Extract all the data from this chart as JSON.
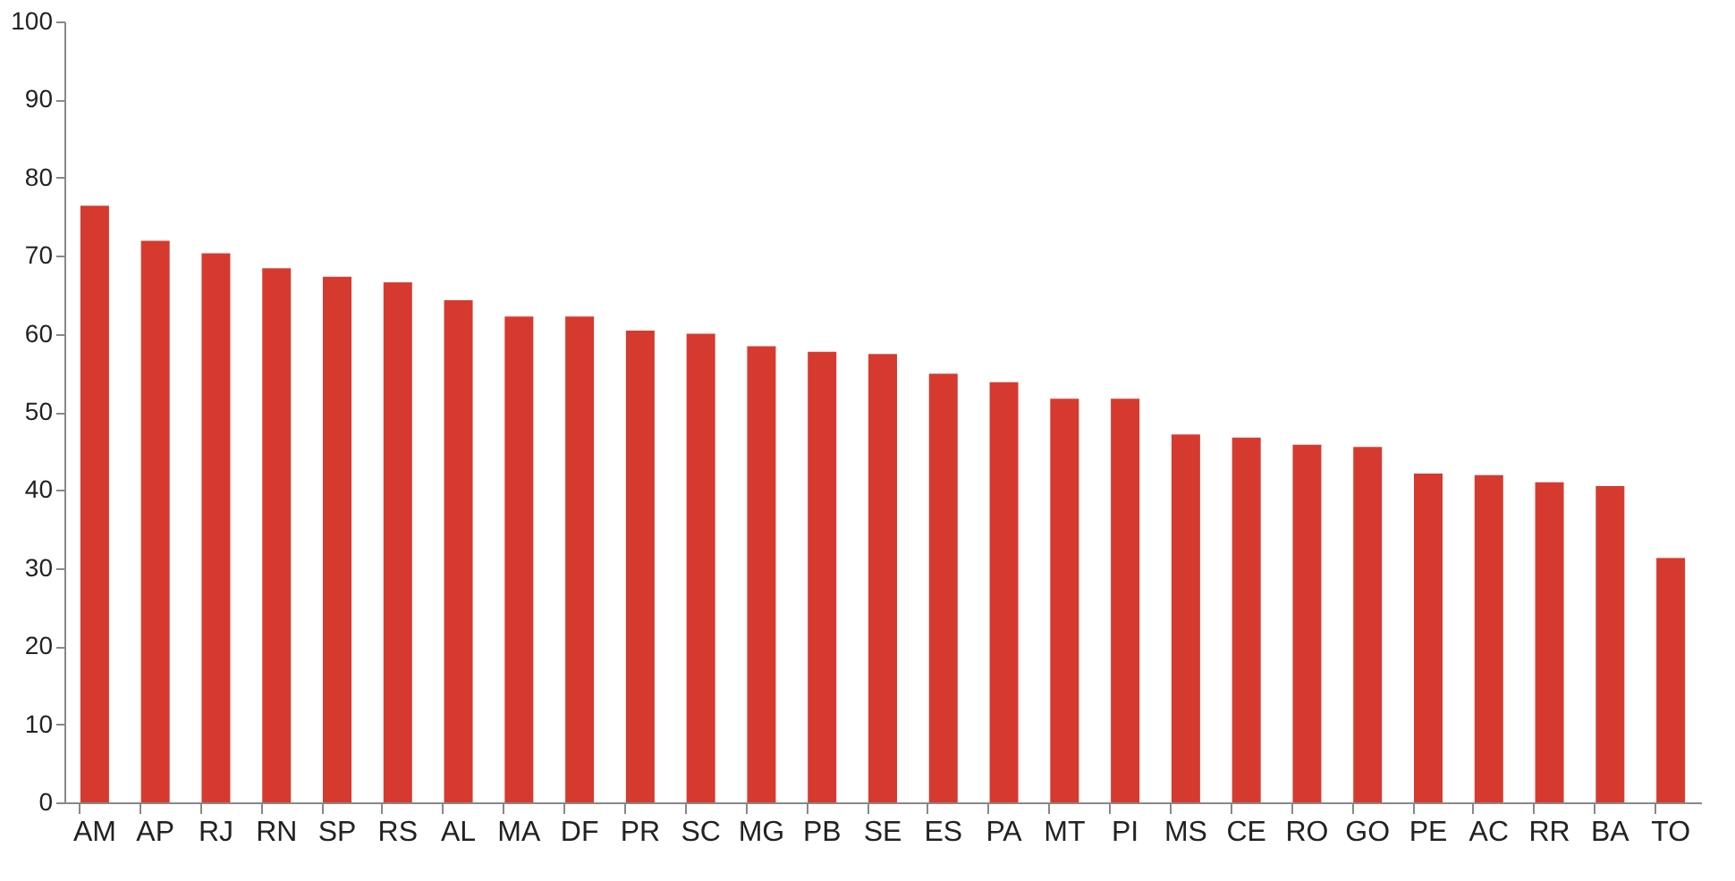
{
  "chart_data": {
    "type": "bar",
    "categories": [
      "AM",
      "AP",
      "RJ",
      "RN",
      "SP",
      "RS",
      "AL",
      "MA",
      "DF",
      "PR",
      "SC",
      "MG",
      "PB",
      "SE",
      "ES",
      "PA",
      "MT",
      "PI",
      "MS",
      "CE",
      "RO",
      "GO",
      "PE",
      "AC",
      "RR",
      "BA",
      "TO"
    ],
    "values": [
      76.4,
      71.9,
      70.3,
      68.4,
      67.3,
      66.6,
      64.3,
      62.2,
      62.2,
      60.4,
      60.0,
      58.4,
      57.7,
      57.4,
      54.9,
      53.8,
      51.7,
      51.7,
      47.1,
      46.7,
      45.8,
      45.5,
      42.1,
      41.9,
      41.0,
      40.5,
      31.3
    ],
    "color": "#d63a2f",
    "ylim": [
      0,
      100
    ],
    "yticks": [
      0,
      10,
      20,
      30,
      40,
      50,
      60,
      70,
      80,
      90,
      100
    ],
    "grid": false
  }
}
